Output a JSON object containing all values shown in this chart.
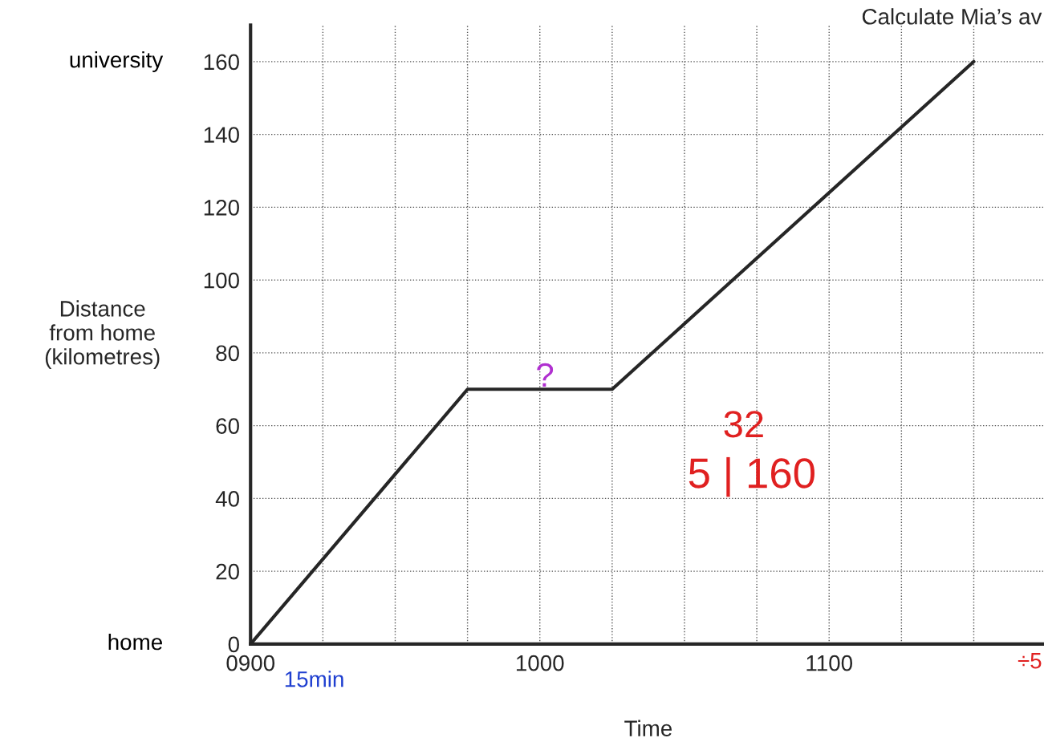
{
  "chart_data": {
    "type": "line",
    "title": "Calculate Mia’s av",
    "xlabel": "Time",
    "ylabel": "Distance\nfrom home\n(kilometres)",
    "x": [
      900,
      975,
      1025,
      1150
    ],
    "series": [
      {
        "color": "#262626",
        "values": [
          0,
          70,
          70,
          160
        ]
      }
    ],
    "xlim": [
      900,
      1175
    ],
    "ylim": [
      0,
      170
    ],
    "xticks": [
      {
        "value": 900,
        "label": "0900"
      },
      {
        "value": 925,
        "label": null
      },
      {
        "value": 950,
        "label": null
      },
      {
        "value": 975,
        "label": null
      },
      1000,
      {
        "value": 1025,
        "label": null
      },
      {
        "value": 1050,
        "label": null
      },
      {
        "value": 1075,
        "label": null
      },
      1100,
      {
        "value": 1125,
        "label": null
      },
      {
        "value": 1150,
        "label": null
      }
    ],
    "yticks": [
      0,
      20,
      40,
      60,
      80,
      100,
      120,
      140,
      160
    ],
    "grid": true,
    "marker": "none",
    "line_style": "solid",
    "annotations": [
      "university",
      "home",
      "?",
      "32",
      "5 | 160",
      "15min",
      "÷5"
    ]
  }
}
